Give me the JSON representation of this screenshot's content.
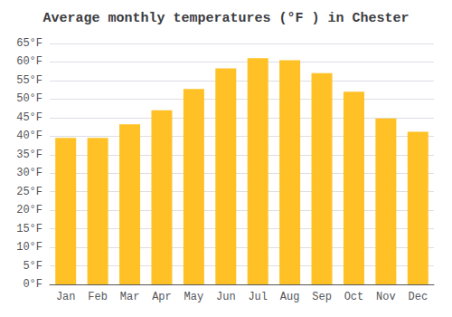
{
  "chart_data": {
    "type": "bar",
    "title": "Average monthly temperatures (°F ) in Chester",
    "categories": [
      "Jan",
      "Feb",
      "Mar",
      "Apr",
      "May",
      "Jun",
      "Jul",
      "Aug",
      "Sep",
      "Oct",
      "Nov",
      "Dec"
    ],
    "values": [
      39.5,
      39.5,
      43.2,
      47.0,
      52.7,
      58.3,
      61.0,
      60.5,
      57.0,
      52.0,
      44.8,
      41.2
    ],
    "color": "#FFC125",
    "ylim": [
      0,
      65
    ],
    "yticks": [
      {
        "value": 0,
        "label": "0°F"
      },
      {
        "value": 5,
        "label": "5°F"
      },
      {
        "value": 10,
        "label": "10°F"
      },
      {
        "value": 15,
        "label": "15°F"
      },
      {
        "value": 20,
        "label": "20°F"
      },
      {
        "value": 25,
        "label": "25°F"
      },
      {
        "value": 30,
        "label": "30°F"
      },
      {
        "value": 35,
        "label": "35°F"
      },
      {
        "value": 40,
        "label": "40°F"
      },
      {
        "value": 45,
        "label": "45°F"
      },
      {
        "value": 50,
        "label": "50°F"
      },
      {
        "value": 55,
        "label": "55°F"
      },
      {
        "value": 60,
        "label": "60°F"
      },
      {
        "value": 65,
        "label": "65°F"
      }
    ],
    "grid": true
  }
}
